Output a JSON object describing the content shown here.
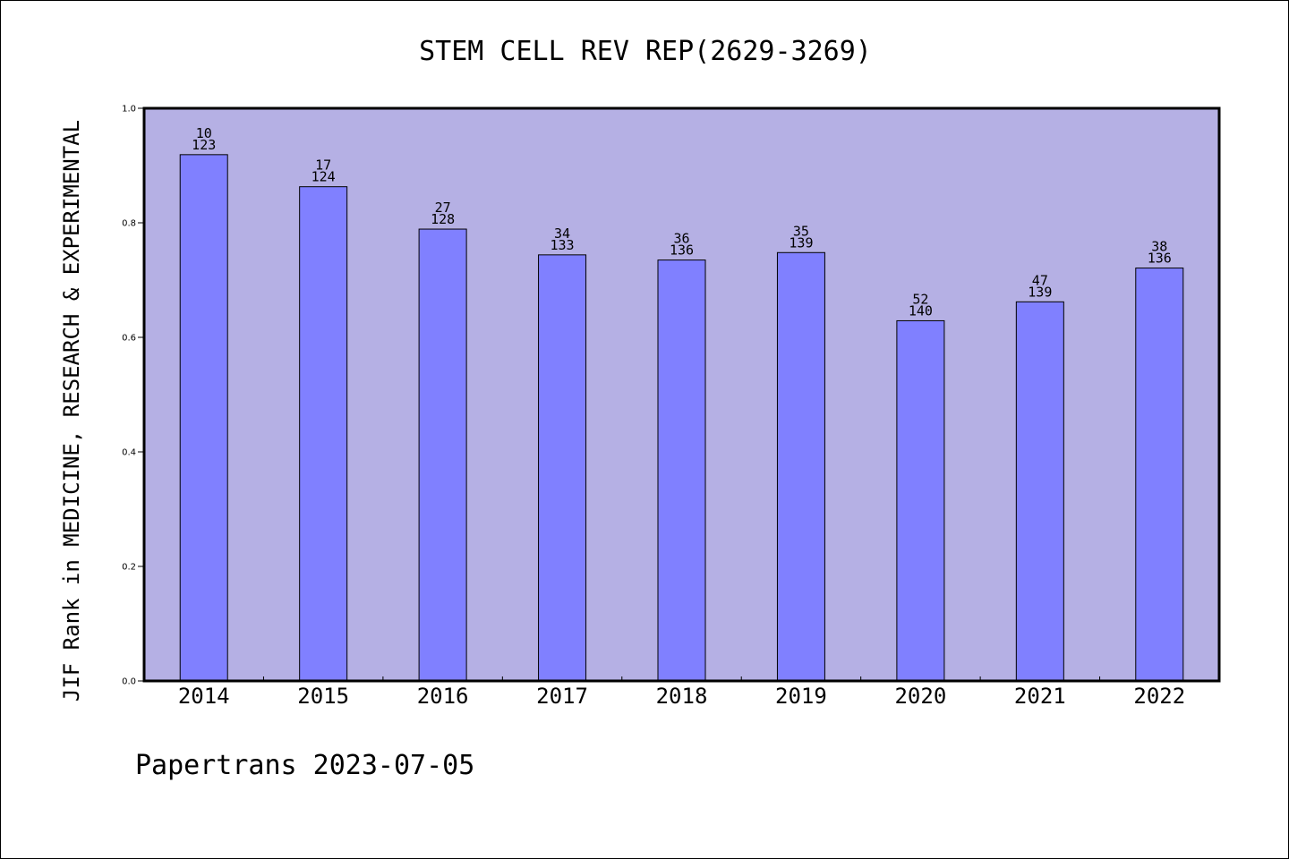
{
  "chart_data": {
    "type": "bar",
    "title": "STEM CELL REV REP(2629-3269)",
    "xlabel": "",
    "ylabel": "JIF Rank in MEDICINE, RESEARCH & EXPERIMENTAL",
    "ylim": [
      0.0,
      1.0
    ],
    "yticks": [
      "0.0",
      "0.2",
      "0.4",
      "0.6",
      "0.8",
      "1.0"
    ],
    "categories": [
      "2014",
      "2015",
      "2016",
      "2017",
      "2018",
      "2019",
      "2020",
      "2021",
      "2022"
    ],
    "values": [
      0.919,
      0.863,
      0.789,
      0.744,
      0.735,
      0.748,
      0.629,
      0.662,
      0.721
    ],
    "bar_labels": [
      {
        "rank": "10",
        "total": "123"
      },
      {
        "rank": "17",
        "total": "124"
      },
      {
        "rank": "27",
        "total": "128"
      },
      {
        "rank": "34",
        "total": "133"
      },
      {
        "rank": "36",
        "total": "136"
      },
      {
        "rank": "35",
        "total": "139"
      },
      {
        "rank": "52",
        "total": "140"
      },
      {
        "rank": "47",
        "total": "139"
      },
      {
        "rank": "38",
        "total": "136"
      }
    ],
    "grid": false,
    "colors": {
      "plot_background": "#b5b0e4",
      "bar_fill": "#8080ff",
      "bar_edge": "#000000"
    }
  },
  "footer": {
    "text": "Papertrans 2023-07-05"
  }
}
